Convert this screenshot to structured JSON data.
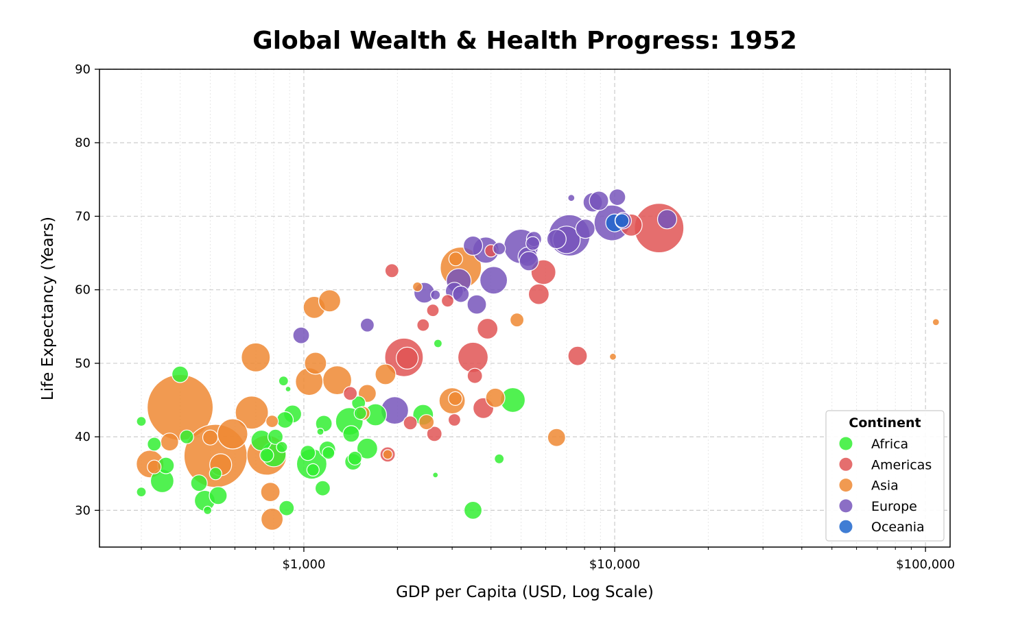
{
  "chart_data": {
    "type": "scatter",
    "title": "Global Wealth & Health Progress: 1952",
    "xlabel": "GDP per Capita (USD, Log Scale)",
    "ylabel": "Life Expectancy (Years)",
    "x_scale": "log",
    "xlim": [
      220,
      120000
    ],
    "ylim": [
      25,
      90
    ],
    "x_ticks": [
      1000,
      10000,
      100000
    ],
    "x_tick_labels": [
      "$1,000",
      "$10,000",
      "$100,000"
    ],
    "y_ticks": [
      30,
      40,
      50,
      60,
      70,
      80,
      90
    ],
    "y_tick_labels": [
      "30",
      "40",
      "50",
      "60",
      "70",
      "80",
      "90"
    ],
    "grid": true,
    "legend": {
      "title": "Continent",
      "position": "lower-right"
    },
    "size_encoding": "population",
    "series": [
      {
        "name": "Africa",
        "color": "#33ee33",
        "points": [
          [
            300,
            42.1,
            7
          ],
          [
            300,
            32.5,
            7
          ],
          [
            330,
            39,
            10
          ],
          [
            360,
            36.1,
            12
          ],
          [
            350,
            34,
            17
          ],
          [
            400,
            48.5,
            12
          ],
          [
            420,
            40,
            10
          ],
          [
            460,
            33.7,
            12
          ],
          [
            480,
            31.3,
            15
          ],
          [
            490,
            30,
            6
          ],
          [
            530,
            32,
            13
          ],
          [
            520,
            35,
            9
          ],
          [
            730,
            39.5,
            15
          ],
          [
            760,
            37.5,
            10
          ],
          [
            800,
            37.6,
            18
          ],
          [
            810,
            40,
            11
          ],
          [
            850,
            38.6,
            8
          ],
          [
            860,
            47.6,
            7
          ],
          [
            870,
            42.3,
            12
          ],
          [
            890,
            46.5,
            4
          ],
          [
            880,
            30.3,
            11
          ],
          [
            920,
            43.1,
            13
          ],
          [
            1030,
            37.8,
            11
          ],
          [
            1060,
            36.3,
            22
          ],
          [
            1070,
            35.5,
            9
          ],
          [
            1130,
            40.7,
            5
          ],
          [
            1150,
            33,
            11
          ],
          [
            1160,
            41.8,
            12
          ],
          [
            1190,
            38.3,
            12
          ],
          [
            1200,
            37.8,
            9
          ],
          [
            1400,
            42.1,
            20
          ],
          [
            1420,
            40.4,
            12
          ],
          [
            1440,
            36.6,
            12
          ],
          [
            1460,
            37.1,
            10
          ],
          [
            1500,
            44.6,
            10
          ],
          [
            1520,
            43.2,
            9
          ],
          [
            1600,
            38.4,
            15
          ],
          [
            1700,
            43,
            16
          ],
          [
            2420,
            43,
            15
          ],
          [
            2700,
            52.7,
            6
          ],
          [
            2650,
            34.8,
            4
          ],
          [
            3500,
            30,
            13
          ],
          [
            4250,
            37,
            7
          ],
          [
            4700,
            45,
            18
          ]
        ]
      },
      {
        "name": "Americas",
        "color": "#e05555",
        "points": [
          [
            1410,
            45.9,
            10
          ],
          [
            1860,
            37.6,
            11
          ],
          [
            1920,
            62.6,
            10
          ],
          [
            2100,
            50.8,
            28
          ],
          [
            2150,
            50.7,
            16
          ],
          [
            2200,
            41.9,
            10
          ],
          [
            2420,
            55.2,
            9
          ],
          [
            2600,
            57.2,
            9
          ],
          [
            2630,
            40.4,
            11
          ],
          [
            2900,
            58.5,
            9
          ],
          [
            3050,
            42.3,
            9
          ],
          [
            3500,
            50.8,
            22
          ],
          [
            3550,
            48.3,
            11
          ],
          [
            3780,
            43.9,
            15
          ],
          [
            3900,
            54.7,
            15
          ],
          [
            4000,
            65.3,
            9
          ],
          [
            5700,
            59.4,
            15
          ],
          [
            5900,
            62.4,
            18
          ],
          [
            7600,
            51,
            14
          ],
          [
            11300,
            68.8,
            16
          ],
          [
            13900,
            68.4,
            36
          ]
        ]
      },
      {
        "name": "Asia",
        "color": "#ee8833",
        "points": [
          [
            320,
            36.3,
            20
          ],
          [
            330,
            35.9,
            10
          ],
          [
            370,
            39.3,
            13
          ],
          [
            400,
            44,
            48
          ],
          [
            520,
            37.4,
            46
          ],
          [
            500,
            39.9,
            11
          ],
          [
            540,
            36.2,
            16
          ],
          [
            590,
            40.4,
            22
          ],
          [
            680,
            43.3,
            24
          ],
          [
            700,
            50.8,
            21
          ],
          [
            760,
            37.5,
            29
          ],
          [
            780,
            32.5,
            14
          ],
          [
            790,
            42.1,
            9
          ],
          [
            790,
            28.8,
            16
          ],
          [
            1040,
            47.5,
            20
          ],
          [
            1080,
            57.6,
            16
          ],
          [
            1090,
            50,
            16
          ],
          [
            1210,
            58.5,
            16
          ],
          [
            1280,
            47.7,
            21
          ],
          [
            1550,
            43.2,
            10
          ],
          [
            1600,
            45.9,
            13
          ],
          [
            1830,
            48.5,
            15
          ],
          [
            1860,
            37.6,
            7
          ],
          [
            2320,
            60.4,
            7
          ],
          [
            2480,
            42,
            11
          ],
          [
            3000,
            44.9,
            19
          ],
          [
            3070,
            45.2,
            10
          ],
          [
            3080,
            64.2,
            10
          ],
          [
            3200,
            63,
            30
          ],
          [
            4130,
            45.3,
            14
          ],
          [
            4850,
            55.9,
            10
          ],
          [
            6500,
            39.9,
            13
          ],
          [
            9870,
            50.9,
            5
          ],
          [
            108000,
            55.6,
            5
          ]
        ]
      },
      {
        "name": "Europe",
        "color": "#7755bb",
        "points": [
          [
            980,
            53.8,
            12
          ],
          [
            1600,
            55.2,
            10
          ],
          [
            1960,
            43.6,
            20
          ],
          [
            2440,
            59.6,
            15
          ],
          [
            2650,
            59.3,
            7
          ],
          [
            3050,
            59.8,
            13
          ],
          [
            3150,
            61.2,
            18
          ],
          [
            3200,
            59.4,
            12
          ],
          [
            3500,
            66,
            14
          ],
          [
            3600,
            58,
            14
          ],
          [
            3850,
            65.4,
            19
          ],
          [
            4080,
            61.3,
            20
          ],
          [
            4250,
            65.6,
            9
          ],
          [
            5000,
            65.9,
            25
          ],
          [
            5250,
            64.5,
            14
          ],
          [
            5300,
            63.9,
            14
          ],
          [
            5450,
            66.3,
            10
          ],
          [
            5500,
            66.9,
            11
          ],
          [
            6500,
            66.9,
            14
          ],
          [
            7000,
            66.8,
            20
          ],
          [
            7150,
            67.4,
            30
          ],
          [
            7250,
            72.5,
            5
          ],
          [
            8050,
            68.3,
            14
          ],
          [
            8500,
            71.9,
            14
          ],
          [
            8900,
            72.1,
            14
          ],
          [
            9800,
            69.1,
            26
          ],
          [
            10200,
            72.6,
            12
          ],
          [
            10650,
            69.4,
            12
          ],
          [
            14750,
            69.6,
            14
          ]
        ]
      },
      {
        "name": "Oceania",
        "color": "#1f66cc",
        "points": [
          [
            10000,
            69.1,
            13
          ],
          [
            10560,
            69.4,
            10
          ]
        ]
      }
    ]
  }
}
